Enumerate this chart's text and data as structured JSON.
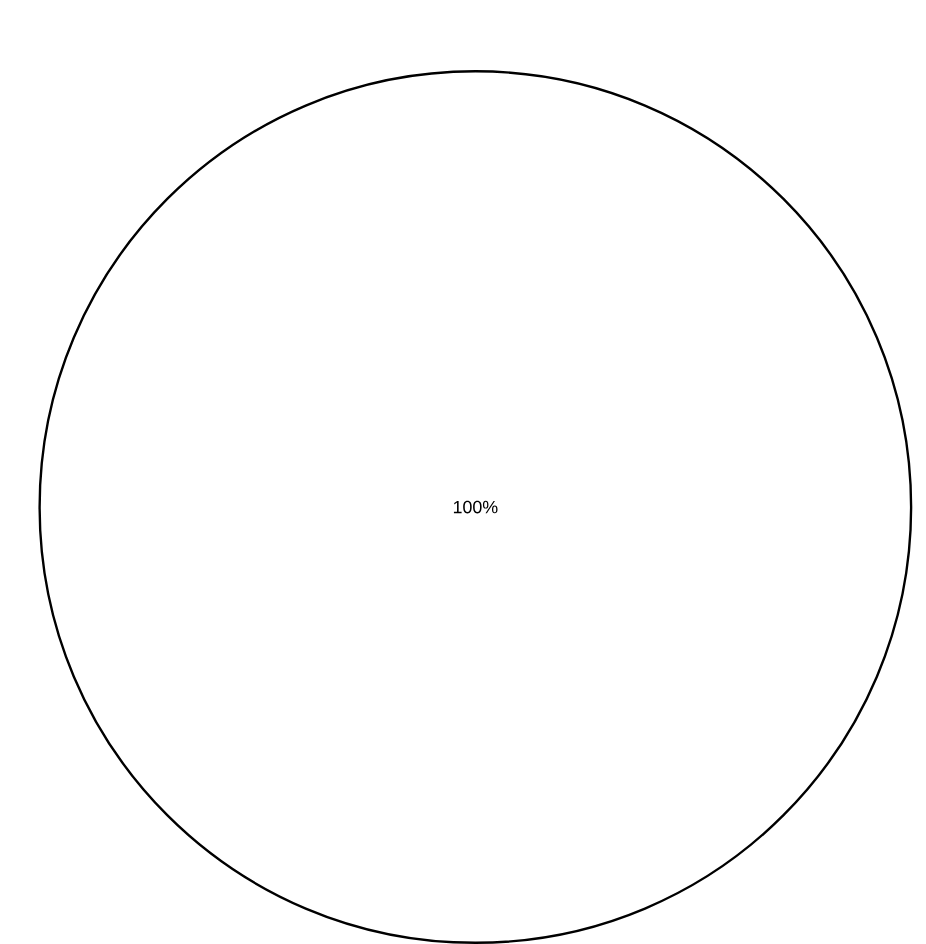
{
  "chart_data": {
    "type": "pie",
    "categories": [
      null
    ],
    "values": [
      100
    ],
    "colors": [
      "#ffffff"
    ],
    "value_labels": [
      "100%"
    ]
  }
}
